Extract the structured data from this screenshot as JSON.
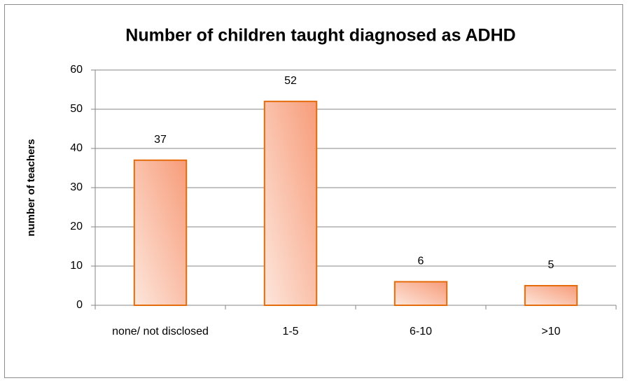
{
  "chart_data": {
    "type": "bar",
    "title": "Number of children taught diagnosed as ADHD",
    "y_label": "number of teachers",
    "categories": [
      "none/ not disclosed",
      "1-5",
      "6-10",
      ">10"
    ],
    "values": [
      37,
      52,
      6,
      5
    ],
    "color": "#e46c0a",
    "ylim": [
      0,
      60
    ],
    "yticks": [
      0,
      10,
      20,
      30,
      40,
      50,
      60
    ],
    "grid": true
  }
}
